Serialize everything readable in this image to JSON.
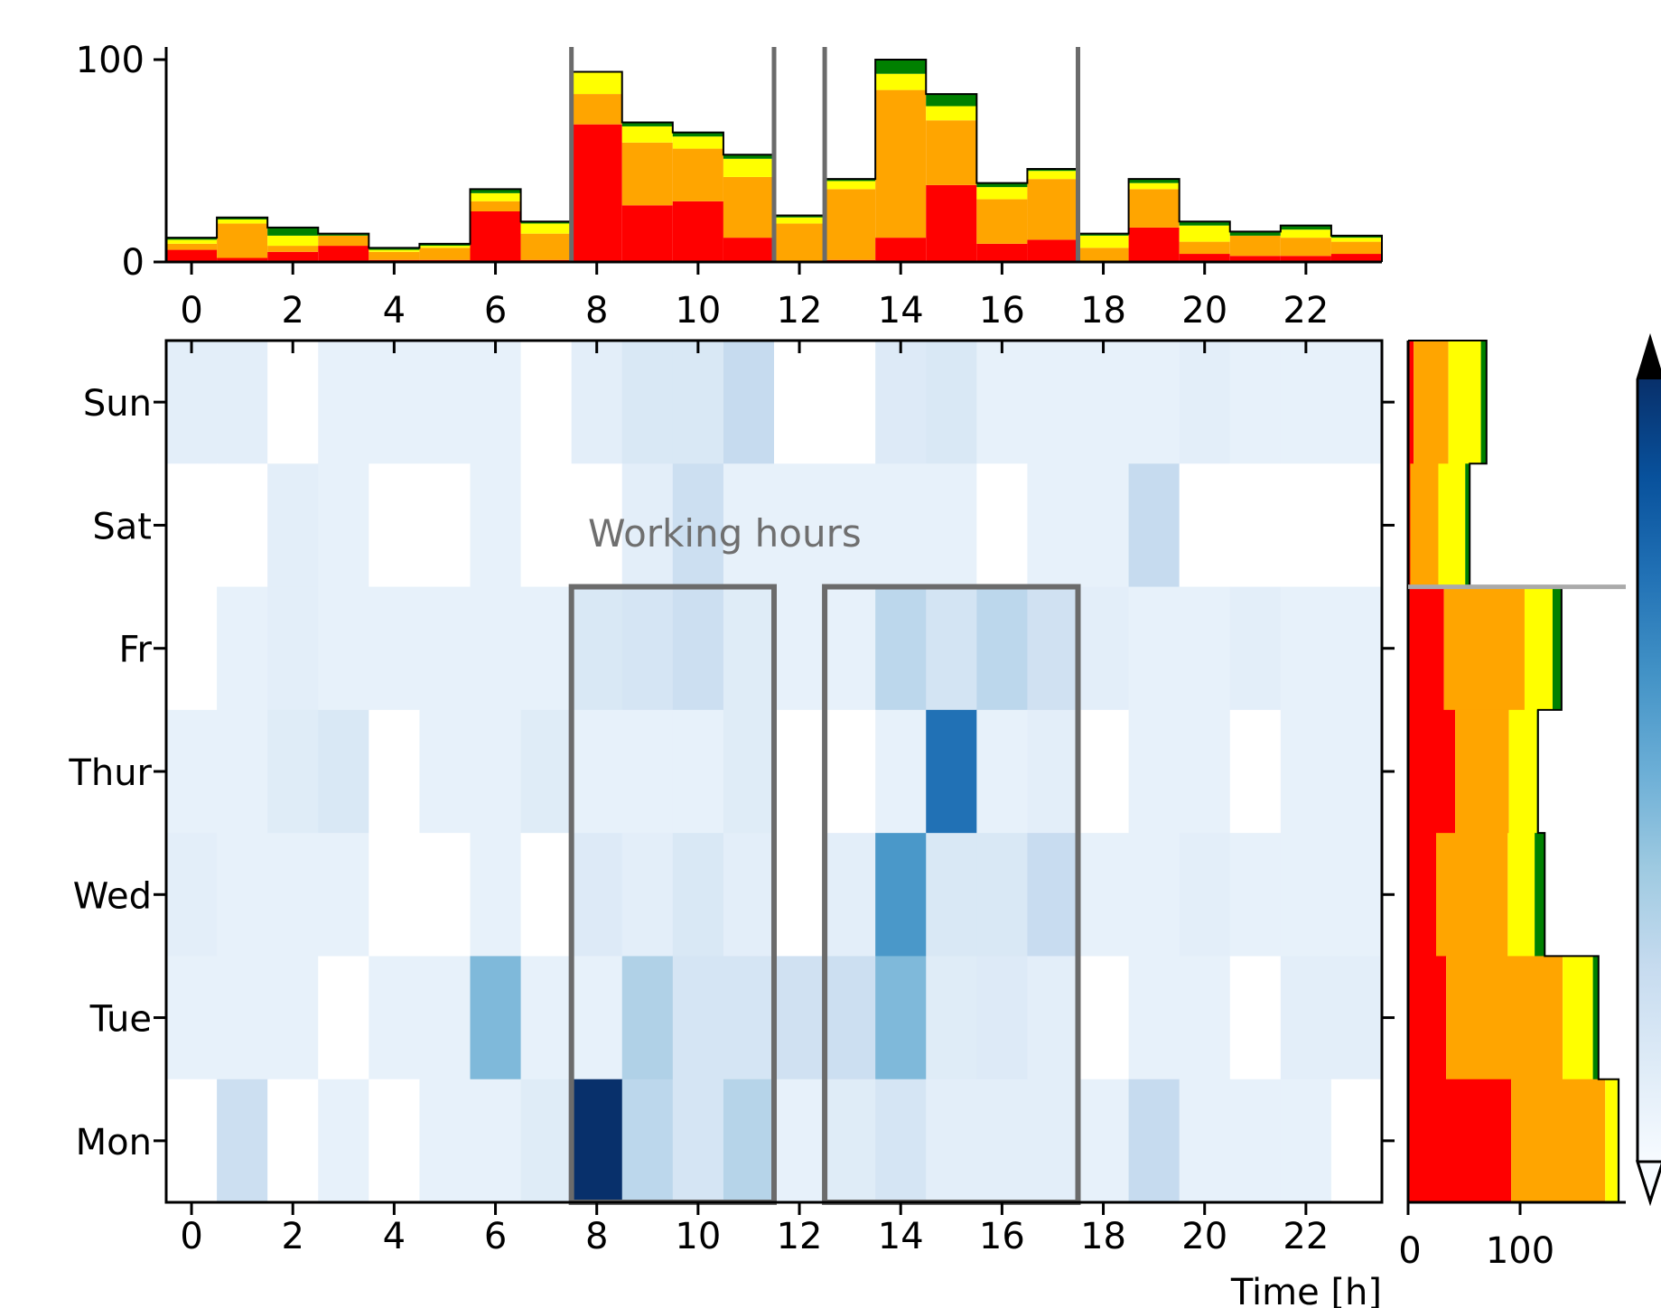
{
  "chart_data": [
    {
      "panel": "top-histogram",
      "type": "bar",
      "stacked": true,
      "x": [
        0,
        1,
        2,
        3,
        4,
        5,
        6,
        7,
        8,
        9,
        10,
        11,
        12,
        13,
        14,
        15,
        16,
        17,
        18,
        19,
        20,
        21,
        22,
        23
      ],
      "series": [
        {
          "color": "#ff0000",
          "values": [
            6,
            2,
            5,
            8,
            1,
            1,
            25,
            1,
            68,
            28,
            30,
            12,
            0,
            1,
            12,
            38,
            9,
            11,
            0,
            17,
            4,
            3,
            3,
            4
          ]
        },
        {
          "color": "#ffa500",
          "values": [
            3,
            17,
            3,
            5,
            4,
            6,
            5,
            13,
            15,
            31,
            26,
            30,
            19,
            35,
            73,
            32,
            22,
            30,
            7,
            19,
            6,
            10,
            9,
            6
          ]
        },
        {
          "color": "#ffff00",
          "values": [
            2,
            2,
            5,
            0,
            1,
            1,
            4,
            5,
            11,
            8,
            6,
            9,
            3,
            4,
            8,
            7,
            6,
            4,
            6,
            3,
            8,
            0,
            4,
            2
          ]
        },
        {
          "color": "#008000",
          "values": [
            1,
            1,
            4,
            1,
            1,
            1,
            2,
            1,
            0,
            2,
            2,
            2,
            1,
            1,
            7,
            6,
            2,
            1,
            1,
            2,
            2,
            2,
            2,
            1
          ]
        }
      ],
      "xticks": [
        "0",
        "2",
        "4",
        "6",
        "8",
        "10",
        "12",
        "14",
        "16",
        "18",
        "20",
        "22"
      ],
      "yticks": [
        "0",
        "100"
      ],
      "ylim": [
        0,
        100
      ]
    },
    {
      "panel": "heatmap",
      "type": "heatmap",
      "colormap": "Blues",
      "rows": [
        "Sun",
        "Sat",
        "Fr",
        "Thur",
        "Wed",
        "Tue",
        "Mon"
      ],
      "cols": [
        0,
        1,
        2,
        3,
        4,
        5,
        6,
        7,
        8,
        9,
        10,
        11,
        12,
        13,
        14,
        15,
        16,
        17,
        18,
        19,
        20,
        21,
        22,
        23
      ],
      "values": [
        [
          0.1,
          0.1,
          0.0,
          0.08,
          0.08,
          0.08,
          0.08,
          0.0,
          0.1,
          0.15,
          0.15,
          0.25,
          0.0,
          0.0,
          0.13,
          0.15,
          0.08,
          0.08,
          0.08,
          0.08,
          0.1,
          0.08,
          0.08,
          0.08
        ],
        [
          0.0,
          0.0,
          0.1,
          0.08,
          0.0,
          0.0,
          0.08,
          0.0,
          0.0,
          0.1,
          0.22,
          0.08,
          0.08,
          0.08,
          0.08,
          0.08,
          0.0,
          0.08,
          0.08,
          0.25,
          0.0,
          0.0,
          0.0,
          0.0
        ],
        [
          0.0,
          0.08,
          0.1,
          0.08,
          0.08,
          0.08,
          0.08,
          0.08,
          0.15,
          0.17,
          0.22,
          0.12,
          0.08,
          0.08,
          0.28,
          0.18,
          0.28,
          0.2,
          0.1,
          0.08,
          0.08,
          0.1,
          0.08,
          0.08
        ],
        [
          0.08,
          0.08,
          0.12,
          0.15,
          0.0,
          0.08,
          0.08,
          0.12,
          0.08,
          0.08,
          0.08,
          0.12,
          0.0,
          0.0,
          0.08,
          0.75,
          0.08,
          0.1,
          0.0,
          0.08,
          0.08,
          0.0,
          0.08,
          0.08
        ],
        [
          0.1,
          0.08,
          0.08,
          0.08,
          0.0,
          0.0,
          0.08,
          0.0,
          0.13,
          0.1,
          0.15,
          0.1,
          0.0,
          0.1,
          0.6,
          0.15,
          0.15,
          0.24,
          0.08,
          0.08,
          0.1,
          0.08,
          0.08,
          0.08
        ],
        [
          0.08,
          0.08,
          0.08,
          0.0,
          0.08,
          0.08,
          0.45,
          0.08,
          0.08,
          0.32,
          0.17,
          0.17,
          0.2,
          0.22,
          0.45,
          0.12,
          0.13,
          0.1,
          0.0,
          0.08,
          0.08,
          0.0,
          0.1,
          0.1
        ],
        [
          0.0,
          0.22,
          0.0,
          0.08,
          0.0,
          0.08,
          0.08,
          0.12,
          1.0,
          0.28,
          0.17,
          0.3,
          0.08,
          0.12,
          0.17,
          0.1,
          0.1,
          0.1,
          0.08,
          0.25,
          0.08,
          0.08,
          0.08,
          0.0
        ]
      ],
      "xticks": [
        "0",
        "2",
        "4",
        "6",
        "8",
        "10",
        "12",
        "14",
        "16",
        "18",
        "20",
        "22"
      ],
      "xlabel": "Time [h]",
      "annotation": "Working hours",
      "highlight_ranges_hours": [
        [
          7.5,
          11.5
        ],
        [
          12.5,
          17.5
        ]
      ],
      "highlight_days": [
        "Fr",
        "Thur",
        "Wed",
        "Tue",
        "Mon"
      ]
    },
    {
      "panel": "right-histogram",
      "type": "bar",
      "orientation": "horizontal",
      "stacked": true,
      "categories": [
        "Sun",
        "Sat",
        "Fr",
        "Thur",
        "Wed",
        "Tue",
        "Mon"
      ],
      "series": [
        {
          "color": "#ff0000",
          "values": [
            5,
            2,
            32,
            42,
            25,
            34,
            92
          ]
        },
        {
          "color": "#ffa500",
          "values": [
            31,
            25,
            72,
            48,
            64,
            104,
            84
          ]
        },
        {
          "color": "#ffff00",
          "values": [
            29,
            24,
            25,
            25,
            24,
            27,
            11
          ]
        },
        {
          "color": "#008000",
          "values": [
            5,
            4,
            8,
            1,
            9,
            5,
            1
          ]
        }
      ],
      "xticks": [
        "0",
        "100"
      ],
      "xlim": [
        0,
        200
      ]
    },
    {
      "panel": "colorbar",
      "type": "colorbar",
      "colormap": "Blues",
      "extend": "both"
    }
  ]
}
